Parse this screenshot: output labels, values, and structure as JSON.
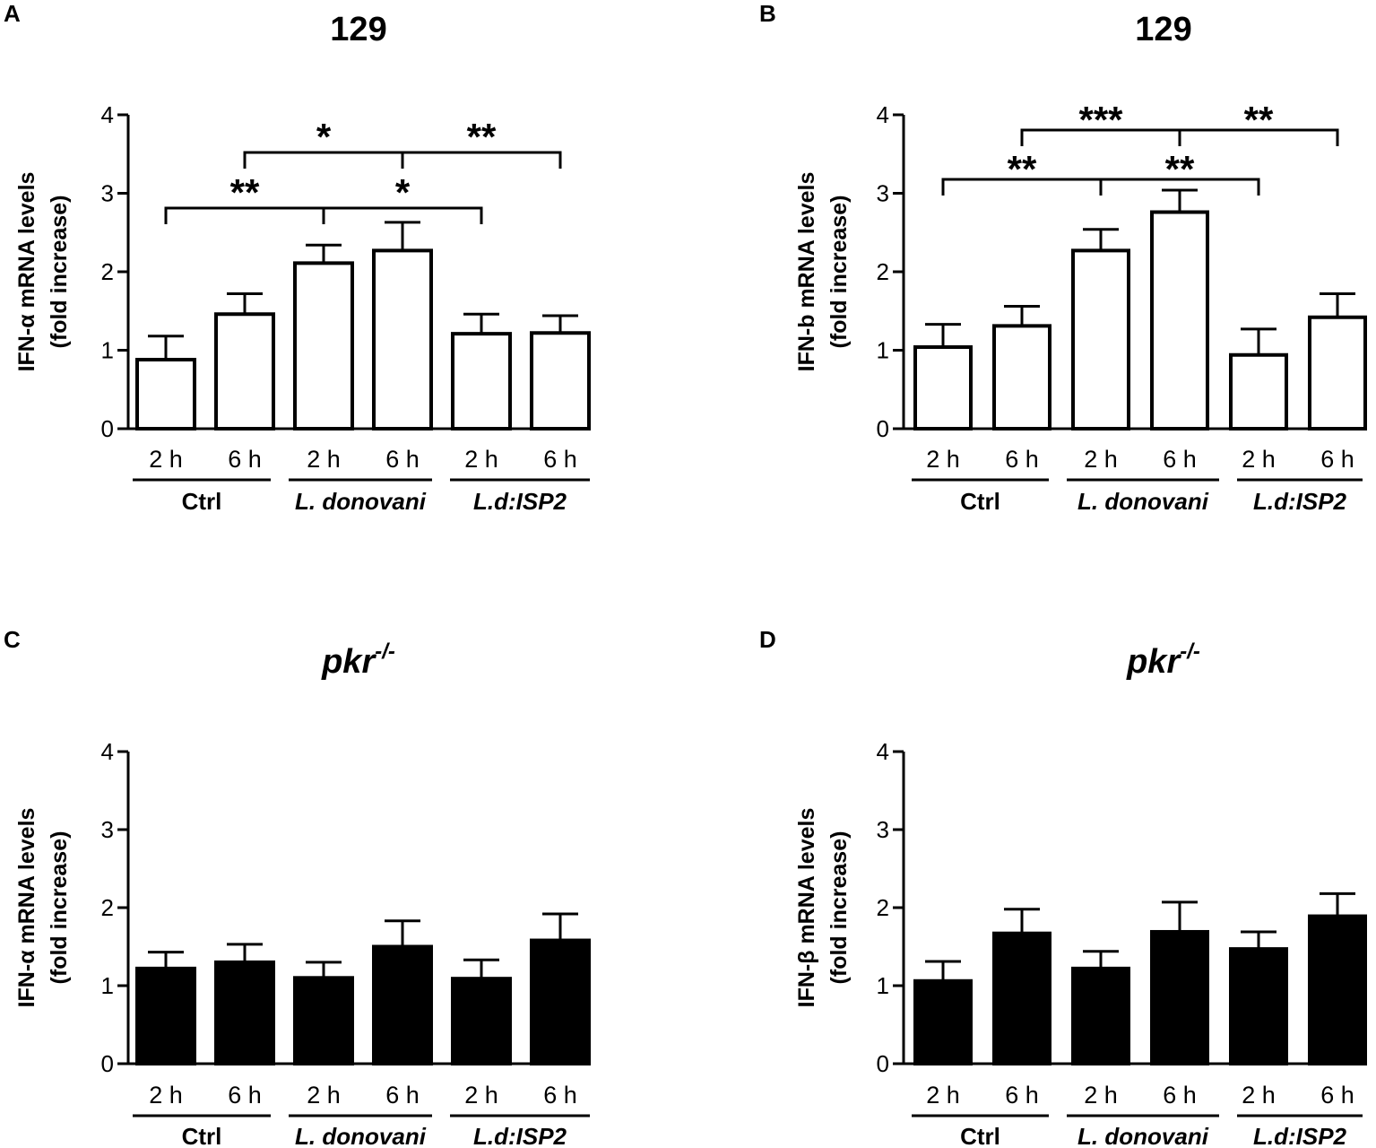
{
  "chart_data": [
    {
      "type": "bar",
      "panel": "A",
      "title": "129",
      "ylabel": "IFN-α mRNA levels",
      "ylabel2": "(fold increase)",
      "ylim": [
        0,
        4
      ],
      "yticks": [
        0,
        1,
        2,
        3,
        4
      ],
      "categories": [
        "2 h",
        "6 h",
        "2 h",
        "6 h",
        "2 h",
        "6 h"
      ],
      "groups": [
        {
          "name": "Ctrl",
          "italic": false
        },
        {
          "name": "L. donovani",
          "italic": true
        },
        {
          "name": "L.d:ISP2",
          "italic": true
        }
      ],
      "fill": "#ffffff",
      "values": [
        0.88,
        1.46,
        2.11,
        2.27,
        1.21,
        1.22
      ],
      "errors": [
        0.3,
        0.26,
        0.23,
        0.36,
        0.25,
        0.22
      ],
      "significance": [
        {
          "from": 0,
          "to": 2,
          "label": "**"
        },
        {
          "from": 2,
          "to": 4,
          "label": "*"
        },
        {
          "from": 1,
          "to": 3,
          "label": "*"
        },
        {
          "from": 3,
          "to": 5,
          "label": "**"
        }
      ]
    },
    {
      "type": "bar",
      "panel": "B",
      "title": "129",
      "ylabel": "IFN-b mRNA levels",
      "ylabel2": "(fold increase)",
      "ylim": [
        0,
        4
      ],
      "yticks": [
        0,
        1,
        2,
        3,
        4
      ],
      "categories": [
        "2 h",
        "6 h",
        "2 h",
        "6 h",
        "2 h",
        "6 h"
      ],
      "groups": [
        {
          "name": "Ctrl",
          "italic": false
        },
        {
          "name": "L. donovani",
          "italic": true
        },
        {
          "name": "L.d:ISP2",
          "italic": true
        }
      ],
      "fill": "#ffffff",
      "values": [
        1.04,
        1.31,
        2.27,
        2.76,
        0.94,
        1.42
      ],
      "errors": [
        0.29,
        0.25,
        0.27,
        0.28,
        0.33,
        0.3
      ],
      "significance": [
        {
          "from": 0,
          "to": 2,
          "label": "**"
        },
        {
          "from": 2,
          "to": 4,
          "label": "**"
        },
        {
          "from": 1,
          "to": 3,
          "label": "***"
        },
        {
          "from": 3,
          "to": 5,
          "label": "**"
        }
      ]
    },
    {
      "type": "bar",
      "panel": "C",
      "title": "pkr",
      "title_sup": "-/-",
      "ylabel": "IFN-α mRNA levels",
      "ylabel2": "(fold increase)",
      "ylim": [
        0,
        4
      ],
      "yticks": [
        0,
        1,
        2,
        3,
        4
      ],
      "categories": [
        "2 h",
        "6 h",
        "2 h",
        "6 h",
        "2 h",
        "6 h"
      ],
      "groups": [
        {
          "name": "Ctrl",
          "italic": false
        },
        {
          "name": "L. donovani",
          "italic": true
        },
        {
          "name": "L.d:ISP2",
          "italic": true
        }
      ],
      "fill": "#000000",
      "values": [
        1.22,
        1.3,
        1.1,
        1.5,
        1.09,
        1.58
      ],
      "errors": [
        0.21,
        0.23,
        0.2,
        0.33,
        0.24,
        0.34
      ],
      "significance": []
    },
    {
      "type": "bar",
      "panel": "D",
      "title": "pkr",
      "title_sup": "-/-",
      "ylabel": "IFN-β mRNA levels",
      "ylabel2": "(fold increase)",
      "ylim": [
        0,
        4
      ],
      "yticks": [
        0,
        1,
        2,
        3,
        4
      ],
      "categories": [
        "2 h",
        "6 h",
        "2 h",
        "6 h",
        "2 h",
        "6 h"
      ],
      "groups": [
        {
          "name": "Ctrl",
          "italic": false
        },
        {
          "name": "L. donovani",
          "italic": true
        },
        {
          "name": "L.d:ISP2",
          "italic": true
        }
      ],
      "fill": "#000000",
      "values": [
        1.06,
        1.67,
        1.22,
        1.69,
        1.47,
        1.89
      ],
      "errors": [
        0.25,
        0.31,
        0.22,
        0.38,
        0.22,
        0.29
      ],
      "significance": []
    }
  ]
}
